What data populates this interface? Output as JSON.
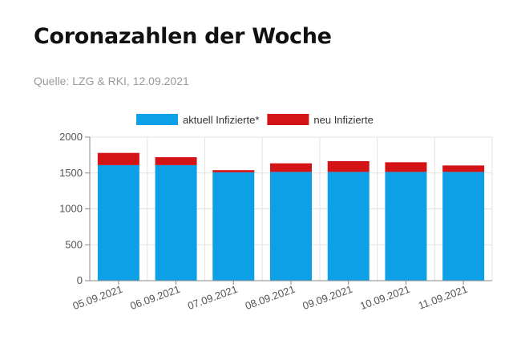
{
  "header": {
    "title": "Coronazahlen der Woche",
    "source": "Quelle: LZG & RKI, 12.09.2021"
  },
  "chart_data": {
    "type": "bar",
    "stacked": true,
    "categories": [
      "05.09.2021",
      "06.09.2021",
      "07.09.2021",
      "08.09.2021",
      "09.09.2021",
      "10.09.2021",
      "11.09.2021"
    ],
    "series": [
      {
        "name": "aktuell Infizierte*",
        "color": "#0ea0e6",
        "values": [
          1610,
          1610,
          1510,
          1515,
          1515,
          1515,
          1515
        ]
      },
      {
        "name": "neu Infizierte",
        "color": "#d41317",
        "values": [
          170,
          110,
          30,
          120,
          150,
          135,
          90
        ]
      }
    ],
    "yticks": [
      0,
      500,
      1000,
      1500,
      2000
    ],
    "ylim": [
      0,
      2000
    ],
    "grid": true,
    "legend": "top-center",
    "xlabel": "",
    "ylabel": ""
  }
}
